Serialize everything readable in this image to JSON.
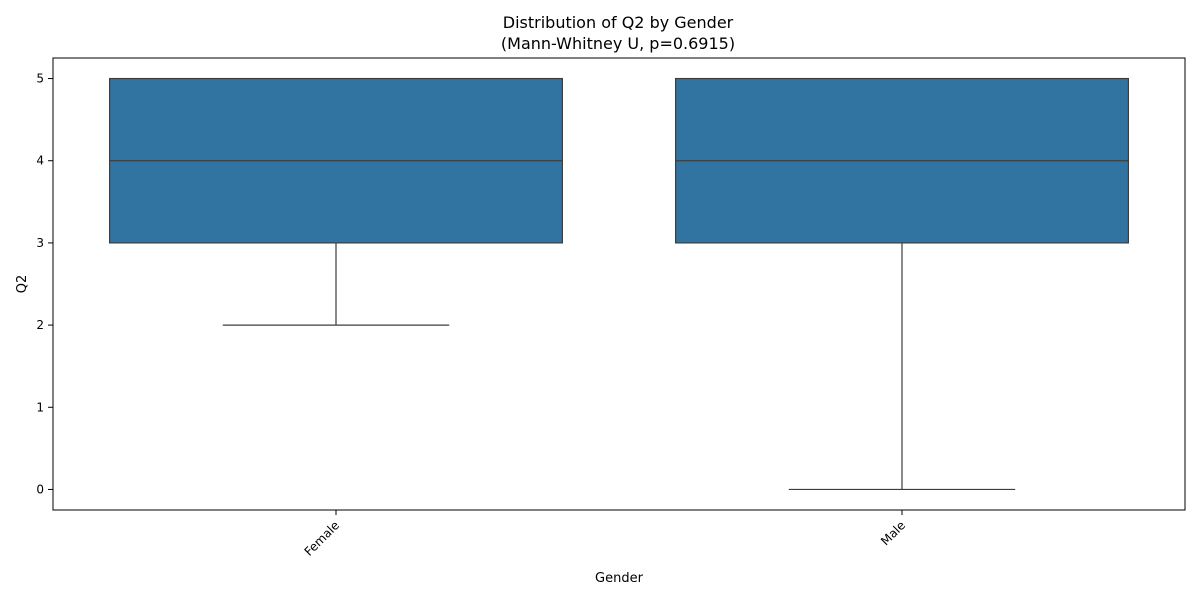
{
  "chart_data": {
    "type": "boxplot",
    "title": "Distribution of Q2 by Gender",
    "subtitle": "(Mann-Whitney U, p=0.6915)",
    "xlabel": "Gender",
    "ylabel": "Q2",
    "ylim": [
      -0.25,
      5.25
    ],
    "yticks": [
      0,
      1,
      2,
      3,
      4,
      5
    ],
    "categories": [
      "Female",
      "Male"
    ],
    "boxes": [
      {
        "category": "Female",
        "whisker_low": 2,
        "q1": 3,
        "median": 4,
        "q3": 5,
        "whisker_high": 5
      },
      {
        "category": "Male",
        "whisker_low": 0,
        "q1": 3,
        "median": 4,
        "q3": 5,
        "whisker_high": 5
      }
    ],
    "grid": false,
    "xtick_rotation_deg": 45,
    "colors": {
      "box_fill": "#3274a1",
      "line": "#3d3d3d"
    }
  }
}
